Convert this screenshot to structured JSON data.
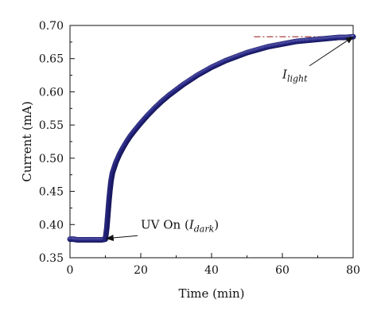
{
  "chart_data": {
    "type": "scatter",
    "title": "",
    "xlabel": "Time (min)",
    "ylabel": "Current (mA)",
    "xlim": [
      0,
      80
    ],
    "ylim": [
      0.35,
      0.7
    ],
    "x_ticks": [
      0,
      20,
      40,
      60,
      80
    ],
    "y_ticks": [
      0.35,
      0.4,
      0.45,
      0.5,
      0.55,
      0.6,
      0.65,
      0.7
    ],
    "x_tick_labels": [
      "0",
      "20",
      "40",
      "60",
      "80"
    ],
    "y_tick_labels": [
      "0.35",
      "0.40",
      "0.45",
      "0.50",
      "0.55",
      "0.60",
      "0.65",
      "0.70"
    ],
    "grid": false,
    "colors": {
      "marker": "#2b2b8f",
      "marker_edge": "#15155a",
      "reference_line": "#9e2a2a"
    },
    "series": [
      {
        "x": [
          0,
          1,
          2,
          3,
          4,
          5,
          6,
          7,
          8,
          9,
          10,
          10.4,
          10.7,
          11,
          11.3,
          11.6,
          12,
          13,
          14,
          15,
          16,
          17,
          18,
          20,
          22,
          24,
          26,
          28,
          30,
          32,
          34,
          36,
          38,
          40,
          42,
          44,
          46,
          48,
          50,
          52,
          54,
          56,
          58,
          60,
          62,
          64,
          66,
          68,
          70,
          72,
          74,
          76,
          78,
          80
        ],
        "y": [
          0.378,
          0.378,
          0.377,
          0.377,
          0.377,
          0.377,
          0.377,
          0.377,
          0.377,
          0.377,
          0.378,
          0.395,
          0.415,
          0.435,
          0.452,
          0.466,
          0.478,
          0.494,
          0.506,
          0.516,
          0.525,
          0.533,
          0.54,
          0.553,
          0.565,
          0.576,
          0.586,
          0.595,
          0.603,
          0.611,
          0.618,
          0.625,
          0.631,
          0.637,
          0.642,
          0.647,
          0.651,
          0.655,
          0.659,
          0.662,
          0.665,
          0.668,
          0.67,
          0.672,
          0.674,
          0.676,
          0.677,
          0.678,
          0.679,
          0.68,
          0.681,
          0.682,
          0.682,
          0.683
        ]
      }
    ],
    "reference_line": {
      "x": [
        52,
        80
      ],
      "y": 0.683,
      "style": "dash-dot"
    },
    "annotations": [
      {
        "prefix": "UV On (",
        "var": "I",
        "sub": "dark",
        "suffix": ")",
        "text_at": [
          20,
          0.394
        ],
        "arrow_to": [
          10.3,
          0.379
        ]
      },
      {
        "var": "I",
        "sub": "light",
        "text_at": [
          60,
          0.62
        ],
        "arrow_to": [
          80,
          0.683
        ]
      }
    ]
  }
}
